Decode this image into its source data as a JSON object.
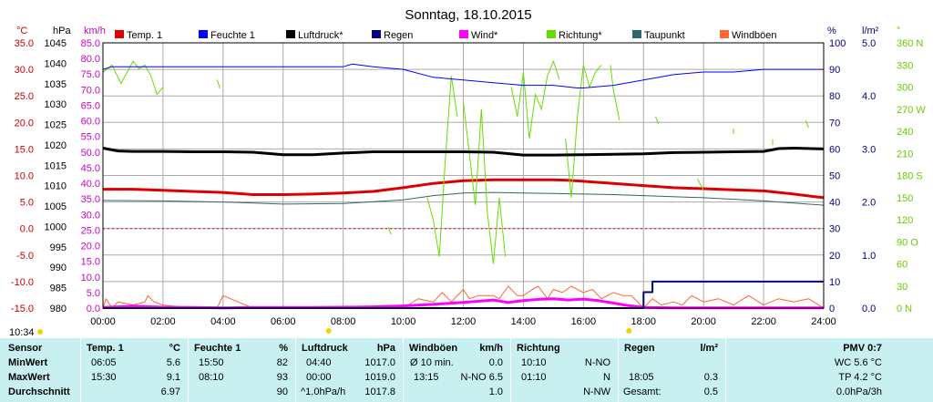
{
  "chart_data": {
    "type": "line",
    "title": "Sonntag, 18.10.2015",
    "time_label": "10:34",
    "x_ticks": [
      "00:00",
      "02:00",
      "04:00",
      "06:00",
      "08:00",
      "10:00",
      "12:00",
      "14:00",
      "16:00",
      "18:00",
      "20:00",
      "22:00",
      "24:00"
    ],
    "axes": {
      "temp": {
        "unit": "°C",
        "range": [
          -15,
          35
        ],
        "color": "#cc0000",
        "ticks": [
          "35.0",
          "30.0",
          "25.0",
          "20.0",
          "15.0",
          "10.0",
          "5.0",
          "0.0",
          "-5.0",
          "-10.0",
          "-15.0"
        ]
      },
      "pressure": {
        "unit": "hPa",
        "range": [
          980,
          1045
        ],
        "color": "#000000",
        "ticks": [
          "1045",
          "1040",
          "1035",
          "1030",
          "1025",
          "1020",
          "1015",
          "1010",
          "1005",
          "1000",
          "995",
          "990",
          "985",
          "980"
        ]
      },
      "wind": {
        "unit": "km/h",
        "range": [
          0,
          85
        ],
        "color": "#cc00cc",
        "ticks": [
          "85.0",
          "80.0",
          "75.0",
          "70.0",
          "65.0",
          "60.0",
          "55.0",
          "50.0",
          "45.0",
          "40.0",
          "35.0",
          "30.0",
          "25.0",
          "20.0",
          "15.0",
          "10.0",
          "5.0",
          "0.0"
        ]
      },
      "humidity": {
        "unit": "%",
        "range": [
          0,
          100
        ],
        "color": "#000080",
        "ticks": [
          "100",
          "90",
          "80",
          "70",
          "60",
          "50",
          "40",
          "30",
          "20",
          "10",
          "0"
        ]
      },
      "rain": {
        "unit": "l/m²",
        "range": [
          0,
          5
        ],
        "color": "#000080",
        "ticks": [
          "5.0",
          "4.0",
          "3.0",
          "2.0",
          "1.0",
          "0.0"
        ]
      },
      "direction": {
        "unit": "°",
        "range": [
          0,
          360
        ],
        "color": "#66cc00",
        "ticks": [
          "360 N",
          "330",
          "300",
          "270 W",
          "240",
          "210",
          "180 S",
          "150",
          "120",
          "90 O",
          "60",
          "30",
          "0 N"
        ]
      }
    },
    "legend": [
      {
        "name": "Temp. 1",
        "color": "#dd0000"
      },
      {
        "name": "Feuchte 1",
        "color": "#0000ff"
      },
      {
        "name": "Luftdruck*",
        "color": "#000000"
      },
      {
        "name": "Regen",
        "color": "#000080"
      },
      {
        "name": "Wind*",
        "color": "#ff00ff"
      },
      {
        "name": "Richtung*",
        "color": "#66dd00"
      },
      {
        "name": "Taupunkt",
        "color": "#336666"
      },
      {
        "name": "Windböen",
        "color": "#ff6633"
      }
    ],
    "series": [
      {
        "name": "Temp. 1",
        "axis": "temp",
        "color": "#dd0000",
        "width": 3,
        "x": [
          0,
          1,
          2,
          3,
          4,
          5,
          6,
          7,
          8,
          9,
          10,
          11,
          12,
          13,
          14,
          15,
          15.5,
          16,
          17,
          18,
          19,
          20,
          21,
          22,
          23,
          24
        ],
        "y": [
          7.4,
          7.4,
          7.2,
          7.0,
          6.8,
          6.4,
          6.4,
          6.5,
          6.7,
          7.0,
          7.7,
          8.5,
          9.0,
          9.2,
          9.2,
          9.2,
          9.1,
          8.9,
          8.5,
          8.1,
          7.7,
          7.5,
          7.3,
          7.1,
          6.5,
          5.8
        ]
      },
      {
        "name": "Feuchte 1",
        "axis": "humidity",
        "color": "#0000ff",
        "width": 1,
        "x": [
          0,
          0.3,
          1,
          2,
          3,
          4,
          5,
          6,
          7,
          8,
          8.3,
          9,
          10,
          11,
          12,
          13,
          14,
          15,
          15.8,
          16,
          17,
          18,
          19,
          20,
          21,
          22,
          23,
          24
        ],
        "y": [
          90,
          91,
          91,
          91,
          91,
          91,
          91,
          91,
          91,
          91,
          92,
          91,
          90,
          87,
          86,
          85,
          84,
          84,
          83,
          83,
          84,
          86,
          88,
          89,
          89,
          90,
          90,
          90
        ]
      },
      {
        "name": "Luftdruck*",
        "axis": "pressure",
        "color": "#000000",
        "width": 3,
        "x": [
          0,
          0.5,
          1,
          2,
          3,
          4,
          5,
          6,
          7,
          8,
          9,
          10,
          11,
          12,
          13,
          14,
          15,
          16,
          17,
          18,
          19,
          20,
          21,
          22,
          22.5,
          23,
          24
        ],
        "y": [
          1019.2,
          1018.5,
          1018.4,
          1018.4,
          1018.3,
          1018.3,
          1018.2,
          1017.6,
          1017.6,
          1018.0,
          1018.3,
          1018.3,
          1018.3,
          1018.3,
          1018.2,
          1017.5,
          1017.5,
          1017.6,
          1017.7,
          1017.8,
          1018.1,
          1018.2,
          1018.3,
          1018.4,
          1019.1,
          1019.2,
          1019.0
        ]
      },
      {
        "name": "Taupunkt",
        "axis": "temp",
        "color": "#336666",
        "width": 1,
        "x": [
          0,
          2,
          4,
          6,
          8,
          10,
          11,
          12,
          13,
          14,
          15,
          16,
          17,
          18,
          20,
          22,
          24
        ],
        "y": [
          5.3,
          5.2,
          5.0,
          4.6,
          4.7,
          5.4,
          6.2,
          6.7,
          6.8,
          6.7,
          6.6,
          6.5,
          6.4,
          6.2,
          5.8,
          5.2,
          4.4
        ]
      },
      {
        "name": "Wind*",
        "axis": "wind",
        "color": "#ff00ff",
        "width": 3,
        "x": [
          0,
          1,
          2,
          3,
          4,
          5,
          6,
          7,
          8,
          9,
          10,
          11,
          12,
          12.5,
          13,
          13.5,
          14,
          14.5,
          15,
          15.5,
          16,
          16.5,
          17,
          17.5,
          18,
          19,
          20,
          22,
          24
        ],
        "y": [
          0.2,
          0.6,
          0.3,
          0.2,
          0.1,
          0.2,
          0.2,
          0.2,
          0.3,
          0.4,
          0.7,
          1.2,
          1.8,
          2.2,
          2.6,
          1.8,
          2.4,
          2.8,
          3.0,
          2.6,
          2.9,
          2.4,
          1.6,
          0.8,
          0.2,
          0.1,
          0.1,
          0.1,
          0.1
        ]
      },
      {
        "name": "Windböen",
        "axis": "wind",
        "color": "#ff6633",
        "width": 1,
        "x": [
          0,
          0.1,
          0.3,
          0.5,
          1,
          1.4,
          1.5,
          1.7,
          2,
          3,
          3.8,
          4,
          5,
          6,
          7,
          8,
          9,
          10,
          10.5,
          11,
          11.3,
          11.6,
          12,
          12.2,
          12.5,
          12.8,
          13,
          13.2,
          13.5,
          13.8,
          14,
          14.3,
          14.5,
          14.8,
          15,
          15.3,
          15.6,
          16,
          16.3,
          16.6,
          17,
          17.3,
          17.6,
          18,
          18.3,
          18.6,
          19,
          19.3,
          19.6,
          20,
          20.5,
          21,
          21.5,
          22,
          22.5,
          23,
          23.5,
          24
        ],
        "y": [
          0,
          3,
          0,
          2,
          1,
          2,
          4,
          2,
          1,
          0,
          0,
          4,
          0,
          0,
          0,
          0,
          0,
          0,
          3,
          2,
          5,
          2,
          6,
          3,
          4,
          4,
          4,
          3,
          7,
          4,
          4,
          6,
          7,
          3,
          6,
          5,
          7,
          5,
          6,
          3,
          5,
          4,
          4,
          0,
          3,
          1,
          2,
          1,
          4,
          2,
          3,
          1,
          4,
          1,
          3,
          2,
          3,
          0
        ]
      },
      {
        "name": "Richtung*",
        "axis": "direction",
        "color": "#66dd00",
        "width": 1,
        "segmented": true,
        "segments": [
          {
            "x": [
              0,
              0.3,
              0.6,
              1.0,
              1.2,
              1.4,
              1.6,
              1.8,
              2.0
            ],
            "y": [
              320,
              330,
              305,
              335,
              325,
              330,
              315,
              290,
              300
            ]
          },
          {
            "x": [
              3.8,
              3.9
            ],
            "y": [
              310,
              298
            ]
          },
          {
            "x": [
              9.5,
              9.6
            ],
            "y": [
              110,
              100
            ]
          },
          {
            "x": [
              10.8,
              11.0,
              11.2,
              11.4,
              11.6,
              11.8
            ],
            "y": [
              150,
              120,
              70,
              200,
              315,
              260
            ]
          },
          {
            "x": [
              12.0,
              12.2,
              12.4,
              12.6,
              12.8,
              13.0,
              13.2,
              13.4
            ],
            "y": [
              280,
              210,
              140,
              270,
              130,
              60,
              150,
              70
            ]
          },
          {
            "x": [
              13.6,
              13.8,
              14.0,
              14.2,
              14.4,
              14.6,
              14.8,
              15.0,
              15.2
            ],
            "y": [
              300,
              260,
              320,
              230,
              290,
              270,
              315,
              335,
              310
            ]
          },
          {
            "x": [
              15.4,
              15.6,
              15.8,
              16.0,
              16.2,
              16.4,
              16.6
            ],
            "y": [
              230,
              150,
              260,
              330,
              300,
              320,
              330
            ]
          },
          {
            "x": [
              16.9,
              17.0,
              17.2
            ],
            "y": [
              330,
              295,
              255
            ]
          },
          {
            "x": [
              18.4,
              18.5
            ],
            "y": [
              260,
              250
            ]
          },
          {
            "x": [
              19.8,
              20.0
            ],
            "y": [
              175,
              160
            ]
          },
          {
            "x": [
              21.0
            ],
            "y": [
              240
            ]
          },
          {
            "x": [
              22.3
            ],
            "y": [
              225
            ]
          },
          {
            "x": [
              23.4,
              23.5
            ],
            "y": [
              255,
              245
            ]
          }
        ]
      },
      {
        "name": "Regen",
        "axis": "rain",
        "color": "#000080",
        "width": 2,
        "step": true,
        "x": [
          0,
          18.0,
          18.0,
          18.3,
          18.3,
          24
        ],
        "y": [
          0,
          0,
          0.3,
          0.3,
          0.5,
          0.5
        ]
      }
    ]
  },
  "stats": {
    "headers": [
      {
        "label": "Sensor",
        "unit": ""
      },
      {
        "label": "Temp. 1",
        "unit": "°C"
      },
      {
        "label": "Feuchte 1",
        "unit": "%"
      },
      {
        "label": "Luftdruck",
        "unit": "hPa"
      },
      {
        "label": "Windböen",
        "unit": "km/h"
      },
      {
        "label": "Richtung",
        "unit": ""
      },
      {
        "label": "Regen",
        "unit": "l/m²"
      },
      {
        "label": "PMV 0:7",
        "unit": ""
      }
    ],
    "rows": [
      {
        "label": "MinWert",
        "temp": [
          "06:05",
          "5.6"
        ],
        "hum": [
          "15:50",
          "82"
        ],
        "press": [
          "04:40",
          "1017.0"
        ],
        "gust": [
          "Ø 10 min.",
          "0.0"
        ],
        "dir": [
          "10:10",
          "N-NO"
        ],
        "rain": [
          "",
          ""
        ],
        "pmv": "WC 5.6 °C"
      },
      {
        "label": "MaxWert",
        "temp": [
          "15:30",
          "9.1"
        ],
        "hum": [
          "08:10",
          "93"
        ],
        "press": [
          "00:00",
          "1019.0"
        ],
        "gust": [
          "13:15",
          "N-NO 6.5"
        ],
        "dir": [
          "01:10",
          "N"
        ],
        "rain": [
          "18:05",
          "0.3"
        ],
        "pmv": "TP 4.2 °C"
      },
      {
        "label": "Durchschnitt",
        "temp": [
          "",
          "6.97"
        ],
        "hum": [
          "",
          "90"
        ],
        "press": [
          "^1.0hPa/h",
          "1017.8"
        ],
        "gust": [
          "",
          "1.0"
        ],
        "dir": [
          "",
          "N-NW"
        ],
        "rain": [
          "Gesamt:",
          "0.5"
        ],
        "pmv": "0.0hPa/3h"
      }
    ]
  }
}
